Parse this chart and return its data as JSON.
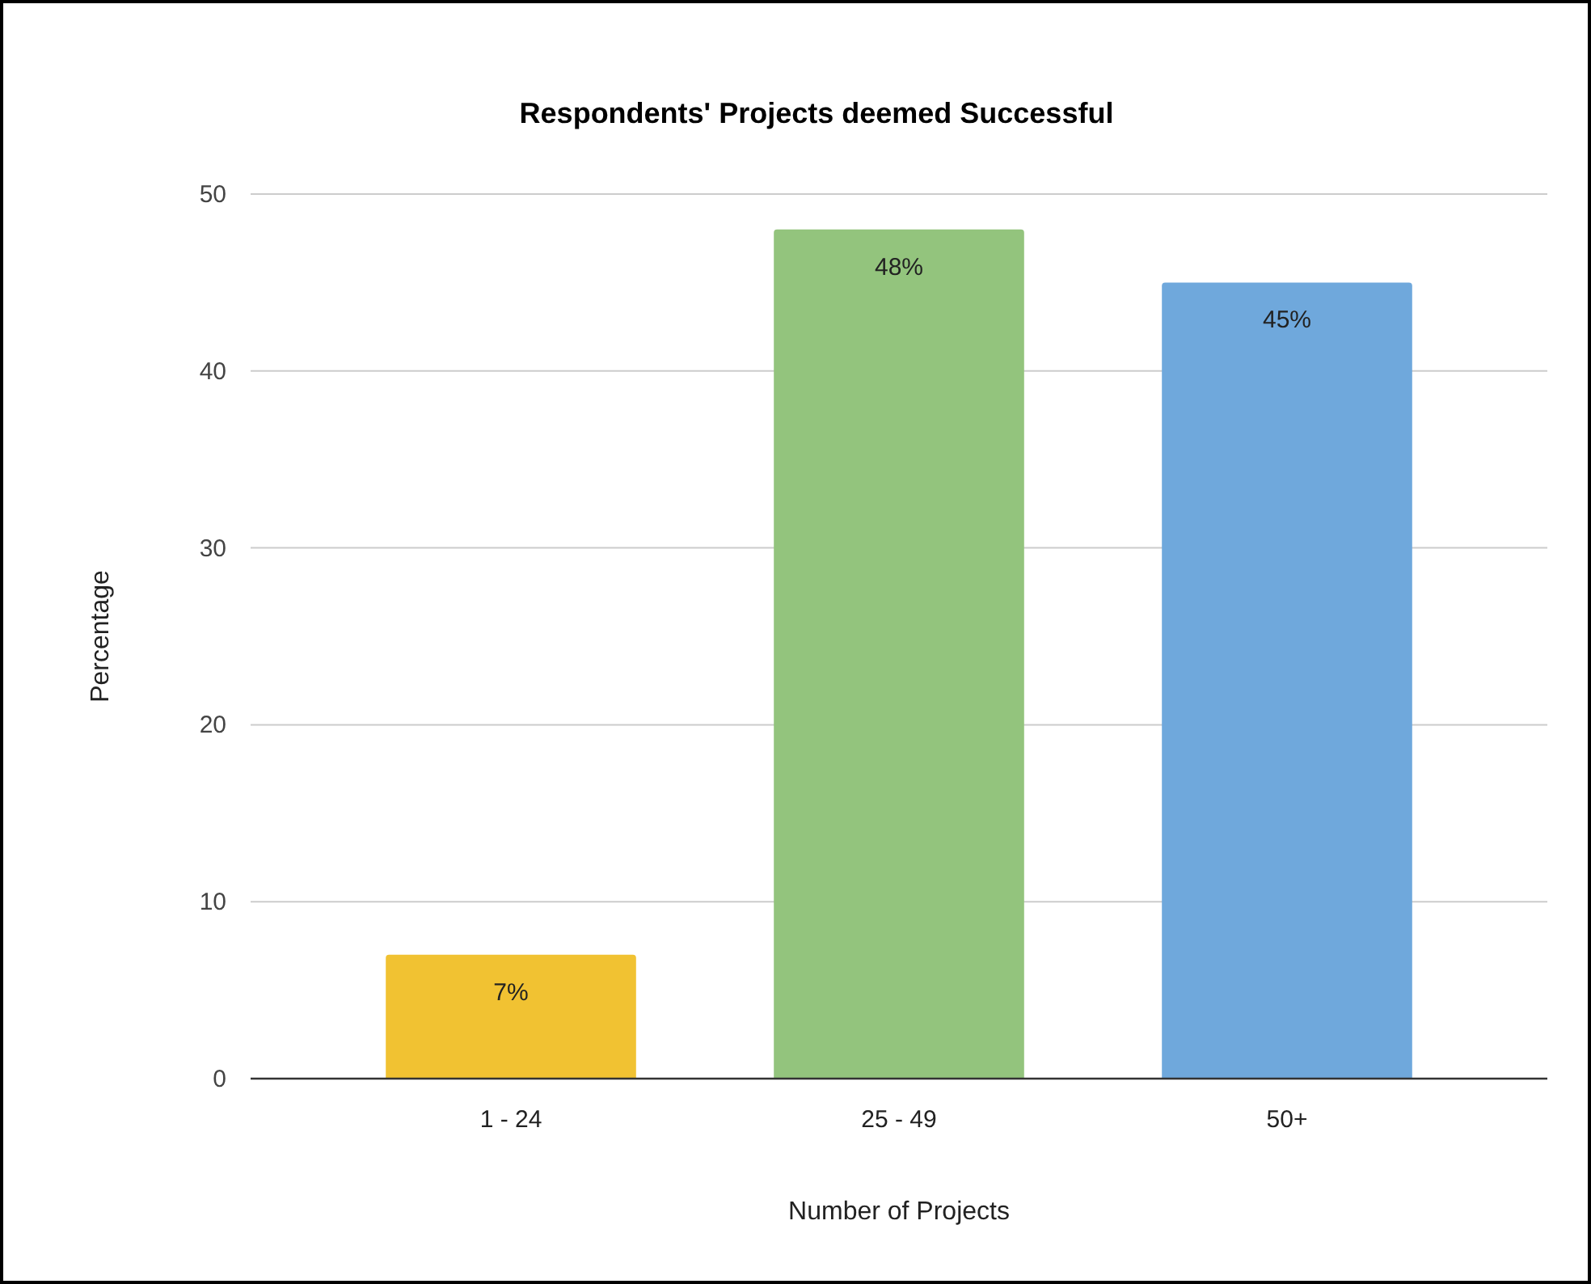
{
  "chart_data": {
    "type": "bar",
    "title": "Respondents' Projects deemed Successful",
    "xlabel": "Number of Projects",
    "ylabel": "Percentage",
    "categories": [
      "1 - 24",
      "25 - 49",
      "50+"
    ],
    "values": [
      7,
      48,
      45
    ],
    "colors": [
      "#f1c232",
      "#93c47d",
      "#6fa8dc"
    ],
    "value_labels": [
      "7%",
      "48%",
      "45%"
    ],
    "ylim": [
      0,
      50
    ],
    "yticks": [
      0,
      10,
      20,
      30,
      40,
      50
    ],
    "grid": "y"
  }
}
